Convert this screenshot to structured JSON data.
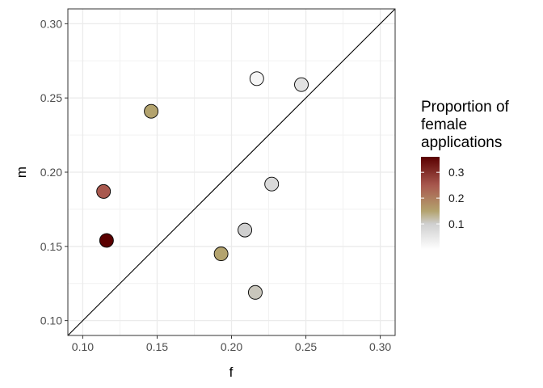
{
  "chart_data": {
    "type": "scatter",
    "xlabel": "f",
    "ylabel": "m",
    "xlim": [
      0.09,
      0.31
    ],
    "ylim": [
      0.09,
      0.31
    ],
    "x_ticks": [
      0.1,
      0.15,
      0.2,
      0.25,
      0.3
    ],
    "y_ticks": [
      0.1,
      0.15,
      0.2,
      0.25,
      0.3
    ],
    "x_tick_labels": [
      "0.10",
      "0.15",
      "0.20",
      "0.25",
      "0.30"
    ],
    "y_tick_labels": [
      "0.10",
      "0.15",
      "0.20",
      "0.25",
      "0.30"
    ],
    "reference_line": "y = x",
    "grid": true,
    "legend": {
      "title_lines": [
        "Proportion of",
        "female",
        "applications"
      ],
      "placement": "right",
      "range": [
        0.0,
        0.36
      ],
      "ticks": [
        0.1,
        0.2,
        0.3
      ],
      "tick_labels": [
        "0.1",
        "0.2",
        "0.3"
      ],
      "gradient_stops": [
        {
          "value": 0.0,
          "color": "#ffffff"
        },
        {
          "value": 0.1,
          "color": "#cfcfcf"
        },
        {
          "value": 0.15,
          "color": "#b3a36e"
        },
        {
          "value": 0.25,
          "color": "#a8584e"
        },
        {
          "value": 0.36,
          "color": "#5a0000"
        }
      ]
    },
    "points": [
      {
        "f": 0.217,
        "m": 0.263,
        "p": 0.02
      },
      {
        "f": 0.247,
        "m": 0.259,
        "p": 0.06
      },
      {
        "f": 0.146,
        "m": 0.241,
        "p": 0.15
      },
      {
        "f": 0.227,
        "m": 0.192,
        "p": 0.08
      },
      {
        "f": 0.114,
        "m": 0.187,
        "p": 0.25
      },
      {
        "f": 0.209,
        "m": 0.161,
        "p": 0.1
      },
      {
        "f": 0.116,
        "m": 0.154,
        "p": 0.36
      },
      {
        "f": 0.193,
        "m": 0.145,
        "p": 0.15
      },
      {
        "f": 0.216,
        "m": 0.119,
        "p": 0.11
      }
    ]
  }
}
